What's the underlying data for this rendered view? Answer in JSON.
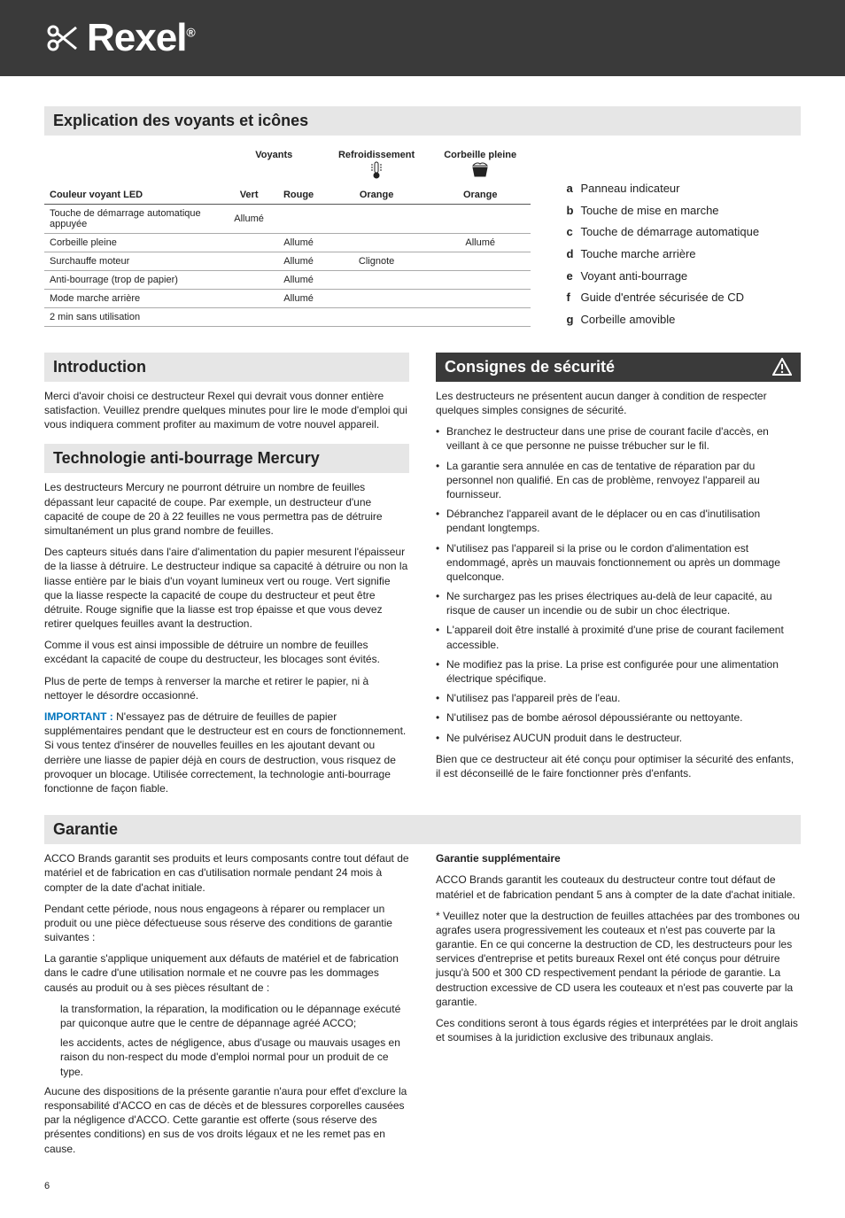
{
  "brand": "Rexel",
  "page_number": "6",
  "colors": {
    "header_bg": "#3a3a3a",
    "section_bg": "#e6e6e6",
    "accent": "#0074bd",
    "text": "#222222",
    "rule": "#aaaaaa"
  },
  "section_titles": {
    "explanation": "Explication des voyants et icônes",
    "introduction": "Introduction",
    "antijam": "Technologie anti-bourrage Mercury",
    "safety": "Consignes de sécurité",
    "warranty": "Garantie"
  },
  "table": {
    "col_group_indicators": "Voyants",
    "col_cooldown": "Refroidissement",
    "col_binfull": "Corbeille pleine",
    "row_head": "Couleur voyant LED",
    "col_green": "Vert",
    "col_red": "Rouge",
    "col_orange1": "Orange",
    "col_orange2": "Orange",
    "rows": [
      {
        "label": "Touche de démarrage automatique appuyée",
        "green": "Allumé",
        "red": "",
        "orange1": "",
        "orange2": ""
      },
      {
        "label": "Corbeille pleine",
        "green": "",
        "red": "Allumé",
        "orange1": "",
        "orange2": "Allumé"
      },
      {
        "label": "Surchauffe moteur",
        "green": "",
        "red": "Allumé",
        "orange1": "Clignote",
        "orange2": ""
      },
      {
        "label": "Anti-bourrage (trop de papier)",
        "green": "",
        "red": "Allumé",
        "orange1": "",
        "orange2": ""
      },
      {
        "label": "Mode marche arrière",
        "green": "",
        "red": "Allumé",
        "orange1": "",
        "orange2": ""
      },
      {
        "label": "2 min sans utilisation",
        "green": "",
        "red": "",
        "orange1": "",
        "orange2": ""
      }
    ]
  },
  "legend": {
    "a": "Panneau indicateur",
    "b": "Touche de mise en marche",
    "c": "Touche de démarrage automatique",
    "d": "Touche marche arrière",
    "e": "Voyant anti-bourrage",
    "f": "Guide d'entrée sécurisée de CD",
    "g": "Corbeille amovible"
  },
  "intro": {
    "p1": "Merci d'avoir choisi ce destructeur Rexel qui devrait vous donner entière satisfaction. Veuillez prendre quelques minutes pour lire le mode d'emploi qui vous indiquera comment profiter au maximum de votre nouvel appareil."
  },
  "antijam": {
    "p1": "Les destructeurs Mercury ne pourront détruire un nombre de feuilles dépassant leur capacité de coupe. Par exemple, un destructeur d'une capacité de coupe de 20 à 22 feuilles ne vous permettra pas de détruire simultanément un plus grand nombre de feuilles.",
    "p2": "Des capteurs situés dans l'aire d'alimentation du papier mesurent l'épaisseur de la liasse à détruire. Le destructeur indique sa capacité à détruire ou non la liasse entière par le biais d'un voyant lumineux vert ou rouge. Vert signifie que la liasse respecte la capacité de coupe du destructeur et peut être détruite. Rouge signifie que la liasse est trop épaisse et que vous devez retirer quelques feuilles avant la destruction.",
    "p3": "Comme il vous est ainsi impossible de détruire un nombre de feuilles excédant la capacité de coupe du destructeur, les blocages sont évités.",
    "p4": "Plus de perte de temps à renverser la marche et retirer le papier, ni à nettoyer le désordre occasionné.",
    "important_label": "IMPORTANT :",
    "p5": "N'essayez pas de détruire de feuilles de papier supplémentaires pendant que le destructeur est en cours de fonctionnement. Si vous tentez d'insérer de nouvelles feuilles en les ajoutant devant ou derrière une liasse de papier déjà en cours de destruction, vous risquez de provoquer un blocage. Utilisée correctement, la technologie anti-bourrage fonctionne de façon fiable."
  },
  "safety": {
    "lead": "Les destructeurs ne présentent aucun danger à condition de respecter quelques simples consignes de sécurité.",
    "bullets": [
      "Branchez le destructeur dans une prise de courant facile d'accès, en veillant à ce que personne ne puisse trébucher sur le fil.",
      "La garantie sera annulée en cas de tentative de réparation par du personnel non qualifié. En cas de problème, renvoyez l'appareil au fournisseur.",
      "Débranchez l'appareil avant de le déplacer ou en cas d'inutilisation pendant longtemps.",
      "N'utilisez pas l'appareil si la prise ou le cordon d'alimentation est endommagé, après un mauvais fonctionnement ou après un dommage quelconque.",
      "Ne surchargez pas les prises électriques au-delà de leur capacité, au risque de causer un incendie ou de subir un choc électrique.",
      "L'appareil doit être installé à proximité d'une prise de courant facilement accessible.",
      "Ne modifiez pas la prise. La prise est configurée pour une alimentation électrique spécifique.",
      "N'utilisez pas l'appareil près de l'eau.",
      "N'utilisez pas de bombe aérosol dépoussiérante ou nettoyante.",
      "Ne pulvérisez AUCUN produit dans le destructeur."
    ],
    "tail": "Bien que ce destructeur ait été conçu pour optimiser la sécurité des enfants, il est déconseillé de le faire fonctionner près d'enfants."
  },
  "warranty": {
    "left": {
      "p1": "ACCO Brands garantit ses produits et leurs composants contre tout défaut de matériel et de fabrication en cas d'utilisation normale pendant 24 mois à compter de la date d'achat initiale.",
      "p2": "Pendant cette période, nous nous engageons à réparer ou remplacer un produit ou une pièce défectueuse sous réserve des conditions de garantie suivantes :",
      "p3": "La garantie s'applique uniquement aux défauts de matériel et de fabrication dans le cadre d'une utilisation normale et ne couvre pas les dommages causés au produit ou à ses pièces résultant de :",
      "sub1": "la transformation, la réparation, la modification ou le dépannage exécuté par quiconque autre que le centre de dépannage agréé ACCO;",
      "sub2": "les accidents, actes de négligence, abus d'usage ou mauvais usages en raison du non-respect du mode d'emploi normal pour un produit de ce type.",
      "p4": "Aucune des dispositions de la présente garantie n'aura pour effet d'exclure la responsabilité d'ACCO en cas de décès et de blessures corporelles causées par la négligence d'ACCO. Cette garantie est offerte (sous réserve des présentes conditions) en sus de vos droits légaux et ne les remet pas en cause."
    },
    "right": {
      "head": "Garantie supplémentaire",
      "p1": "ACCO Brands garantit les couteaux du destructeur contre tout défaut de matériel et de fabrication pendant 5 ans à compter de la date d'achat initiale.",
      "p2": "* Veuillez noter que la destruction de feuilles attachées par des trombones ou agrafes usera progressivement les couteaux et n'est pas couverte par la garantie. En ce qui concerne la destruction de CD, les destructeurs pour les services d'entreprise et petits bureaux Rexel ont été conçus pour détruire jusqu'à 500 et 300 CD respectivement pendant la période de garantie. La destruction excessive de CD usera les couteaux et n'est pas couverte par la garantie.",
      "p3": "Ces conditions seront à tous égards régies et interprétées par le droit anglais et soumises à la juridiction exclusive des tribunaux anglais."
    }
  }
}
